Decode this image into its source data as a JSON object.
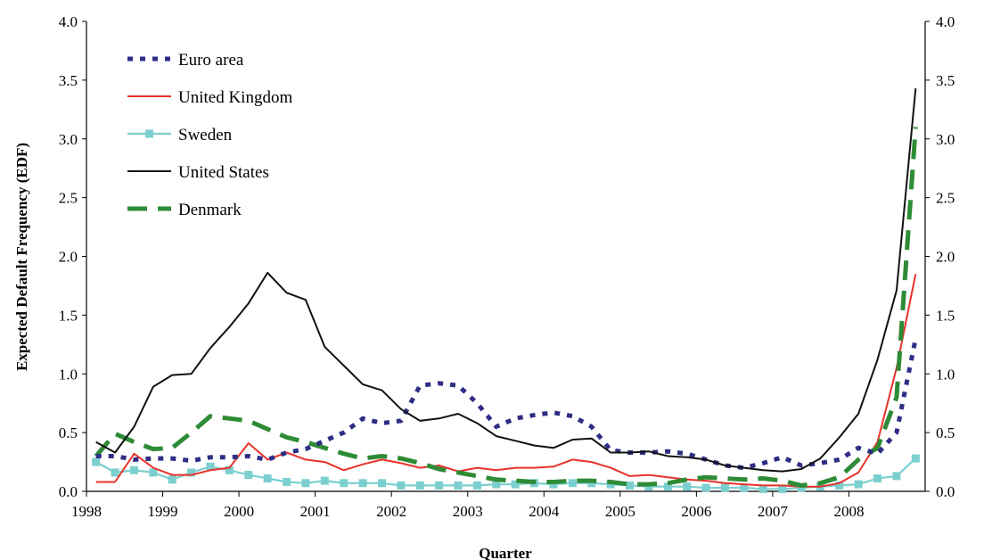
{
  "chart_data": {
    "type": "line",
    "xlabel": "Quarter",
    "ylabel": "Expected Default Frequency (EDF)",
    "ylim": [
      0,
      4
    ],
    "yticks": [
      "0.0",
      "0.5",
      "1.0",
      "1.5",
      "2.0",
      "2.5",
      "3.0",
      "3.5",
      "4.0"
    ],
    "year_labels": [
      "1998",
      "1999",
      "2000",
      "2001",
      "2002",
      "2003",
      "2004",
      "2005",
      "2006",
      "2007",
      "2008"
    ],
    "x": [
      "1998Q1",
      "1998Q2",
      "1998Q3",
      "1998Q4",
      "1999Q1",
      "1999Q2",
      "1999Q3",
      "1999Q4",
      "2000Q1",
      "2000Q2",
      "2000Q3",
      "2000Q4",
      "2001Q1",
      "2001Q2",
      "2001Q3",
      "2001Q4",
      "2002Q1",
      "2002Q2",
      "2002Q3",
      "2002Q4",
      "2003Q1",
      "2003Q2",
      "2003Q3",
      "2003Q4",
      "2004Q1",
      "2004Q2",
      "2004Q3",
      "2004Q4",
      "2005Q1",
      "2005Q2",
      "2005Q3",
      "2005Q4",
      "2006Q1",
      "2006Q2",
      "2006Q3",
      "2006Q4",
      "2007Q1",
      "2007Q2",
      "2007Q3",
      "2007Q4",
      "2008Q1",
      "2008Q2",
      "2008Q3",
      "2008Q4"
    ],
    "legend_position": "top-left",
    "grid": false,
    "series": [
      {
        "name": "Euro area",
        "color": "#2e2e86",
        "style": "dotted-square",
        "values": [
          0.3,
          0.3,
          0.27,
          0.28,
          0.28,
          0.26,
          0.29,
          0.29,
          0.3,
          0.27,
          0.33,
          0.36,
          0.43,
          0.5,
          0.62,
          0.58,
          0.6,
          0.9,
          0.92,
          0.9,
          0.75,
          0.55,
          0.62,
          0.65,
          0.67,
          0.64,
          0.55,
          0.35,
          0.33,
          0.33,
          0.34,
          0.32,
          0.27,
          0.22,
          0.2,
          0.24,
          0.29,
          0.22,
          0.24,
          0.27,
          0.37,
          0.32,
          0.5,
          1.3
        ]
      },
      {
        "name": "United Kingdom",
        "color": "#e8322a",
        "style": "solid",
        "values": [
          0.08,
          0.08,
          0.32,
          0.2,
          0.14,
          0.14,
          0.18,
          0.2,
          0.41,
          0.27,
          0.33,
          0.27,
          0.25,
          0.18,
          0.23,
          0.27,
          0.24,
          0.2,
          0.22,
          0.17,
          0.2,
          0.18,
          0.2,
          0.2,
          0.21,
          0.27,
          0.25,
          0.2,
          0.13,
          0.14,
          0.12,
          0.1,
          0.09,
          0.07,
          0.06,
          0.05,
          0.05,
          0.04,
          0.04,
          0.07,
          0.16,
          0.42,
          1.05,
          1.85
        ]
      },
      {
        "name": "Sweden",
        "color": "#7ccfcf",
        "style": "square-markers",
        "values": [
          0.25,
          0.16,
          0.18,
          0.16,
          0.1,
          0.16,
          0.21,
          0.18,
          0.14,
          0.11,
          0.08,
          0.07,
          0.09,
          0.07,
          0.07,
          0.07,
          0.05,
          0.05,
          0.05,
          0.05,
          0.05,
          0.06,
          0.06,
          0.07,
          0.06,
          0.07,
          0.07,
          0.06,
          0.05,
          0.04,
          0.04,
          0.04,
          0.03,
          0.03,
          0.03,
          0.02,
          0.02,
          0.03,
          0.04,
          0.05,
          0.06,
          0.11,
          0.13,
          0.28
        ]
      },
      {
        "name": "United States",
        "color": "#111111",
        "style": "solid",
        "values": [
          0.42,
          0.33,
          0.55,
          0.89,
          0.99,
          1.0,
          1.22,
          1.4,
          1.6,
          1.86,
          1.69,
          1.63,
          1.23,
          1.07,
          0.91,
          0.86,
          0.7,
          0.6,
          0.62,
          0.66,
          0.58,
          0.47,
          0.43,
          0.39,
          0.37,
          0.44,
          0.45,
          0.33,
          0.33,
          0.34,
          0.3,
          0.29,
          0.27,
          0.22,
          0.2,
          0.18,
          0.17,
          0.19,
          0.28,
          0.46,
          0.66,
          1.12,
          1.71,
          3.43
        ]
      },
      {
        "name": "Denmark",
        "color": "#2e8b36",
        "style": "dashed",
        "values": [
          0.3,
          0.49,
          0.42,
          0.36,
          0.37,
          0.5,
          0.64,
          0.62,
          0.6,
          0.53,
          0.46,
          0.42,
          0.37,
          0.32,
          0.28,
          0.3,
          0.28,
          0.24,
          0.19,
          0.16,
          0.13,
          0.1,
          0.09,
          0.08,
          0.08,
          0.09,
          0.09,
          0.08,
          0.06,
          0.06,
          0.07,
          0.1,
          0.12,
          0.11,
          0.1,
          0.11,
          0.09,
          0.05,
          0.07,
          0.12,
          0.27,
          0.37,
          0.8,
          3.1
        ]
      }
    ]
  }
}
